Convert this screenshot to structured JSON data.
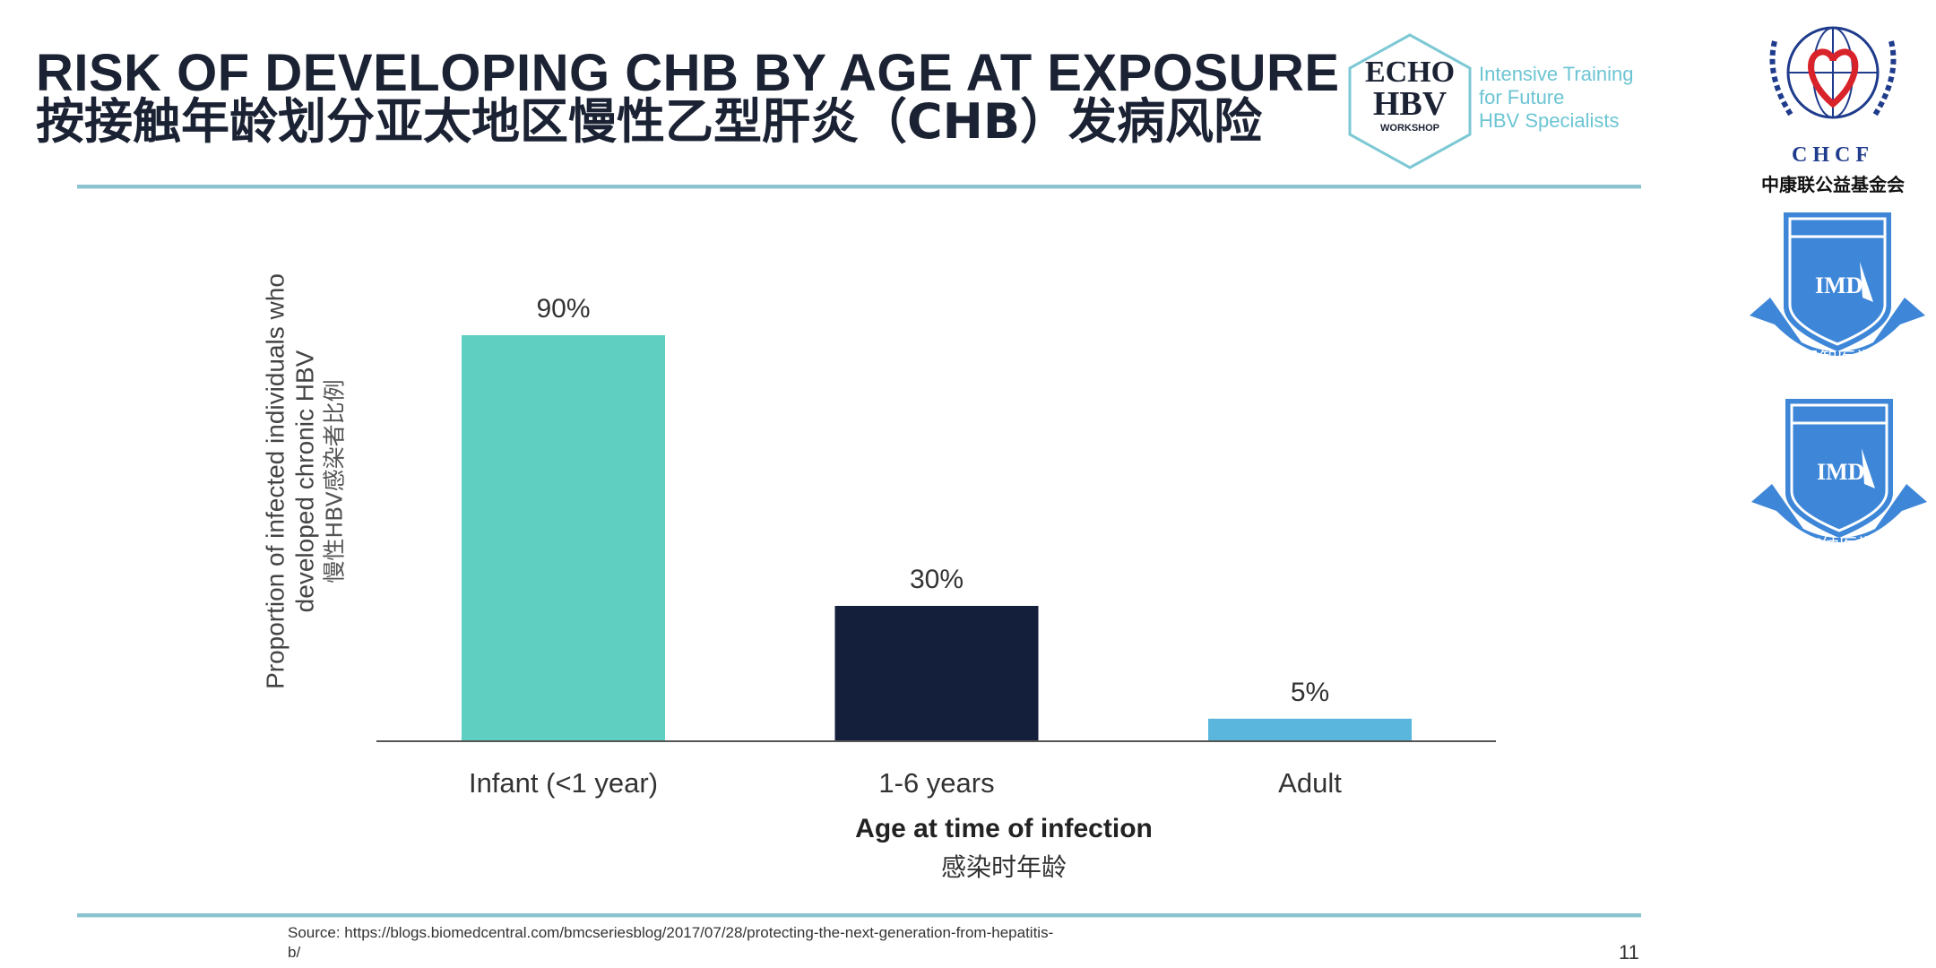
{
  "header": {
    "title_en": "RISK OF DEVELOPING CHB BY AGE AT EXPOSURE",
    "title_cn": "按接触年龄划分亚太地区慢性乙型肝炎（CHB）发病风险",
    "echo_logo": {
      "line1": "ECHO",
      "line2": "HBV",
      "line3": "WORKSHOP"
    },
    "tagline": [
      "Intensive Training",
      "for Future",
      "HBV Specialists"
    ]
  },
  "logos": {
    "chcf": {
      "name": "CHCF",
      "cn": "中康联公益基金会"
    },
    "imd1": {
      "name": "IMD",
      "cn": "君智医学"
    },
    "imd2": {
      "name": "IMD",
      "cn": "海纳医学"
    }
  },
  "chart_data": {
    "type": "bar",
    "categories": [
      "Infant (<1 year)",
      "1-6 years",
      "Adult"
    ],
    "values": [
      90,
      30,
      5
    ],
    "data_labels": [
      "90%",
      "30%",
      "5%"
    ],
    "colors": [
      "#5fcfc1",
      "#141f3c",
      "#5ab6dc"
    ],
    "ylabel": [
      "Proportion of infected individuals who",
      "developed chronic HBV",
      "慢性HBV感染者比例"
    ],
    "xlabel": "Age at time of infection",
    "xlabel_cn": "感染时年龄",
    "ylim": [
      0,
      100
    ],
    "grid": false
  },
  "footer": {
    "source_line1": "Source: https://blogs.biomedcentral.com/bmcseriesblog/2017/07/28/protecting-the-next-generation-from-hepatitis-",
    "source_line2": "b/",
    "page_number": "11"
  }
}
